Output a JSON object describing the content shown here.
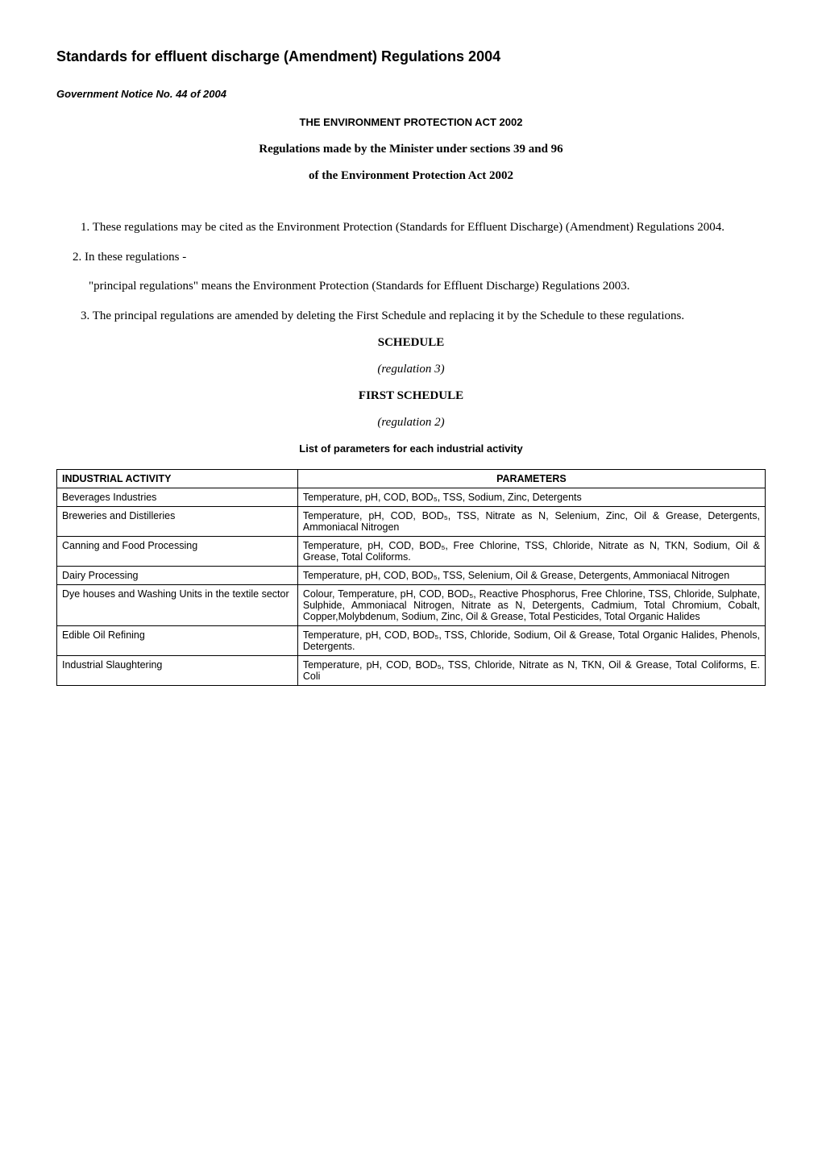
{
  "title": "Standards for effluent discharge (Amendment) Regulations 2004",
  "notice": "Government Notice No. 44 of 2004",
  "act_title": "THE ENVIRONMENT PROTECTION ACT 2002",
  "reg_line1": "Regulations made by the Minister under sections 39 and 96",
  "reg_line2": "of the Environment Protection Act 2002",
  "para1": "1. These regulations may be cited as the Environment Protection (Standards for Effluent Discharge) (Amendment) Regulations 2004.",
  "para2": "2.   In these regulations -",
  "para2b": "\"principal regulations\" means the Environment Protection (Standards for Effluent Discharge) Regulations 2003.",
  "para3": "3. The principal regulations are amended by deleting the First Schedule and replacing it by the Schedule to these regulations.",
  "schedule_heading": "SCHEDULE",
  "schedule_reg": "(regulation 3)",
  "first_schedule_heading": "FIRST SCHEDULE",
  "first_schedule_reg": "(regulation 2)",
  "list_heading": "List of parameters for each industrial activity",
  "table": {
    "header_activity": "INDUSTRIAL ACTIVITY",
    "header_params": "PARAMETERS",
    "rows": [
      {
        "activity": "Beverages Industries",
        "params": "Temperature, pH, COD, BOD₅, TSS, Sodium, Zinc, Detergents"
      },
      {
        "activity": "Breweries and Distilleries",
        "params": "Temperature, pH, COD, BOD₅, TSS, Nitrate as N, Selenium, Zinc, Oil & Grease, Detergents, Ammoniacal Nitrogen"
      },
      {
        "activity": "Canning and  Food Processing",
        "params": "Temperature, pH, COD, BOD₅, Free Chlorine, TSS, Chloride, Nitrate as N, TKN, Sodium, Oil & Grease, Total Coliforms."
      },
      {
        "activity": "Dairy Processing",
        "params": "Temperature, pH, COD, BOD₅, TSS, Selenium, Oil & Grease, Detergents, Ammoniacal Nitrogen"
      },
      {
        "activity": "Dye houses and  Washing Units in the textile sector",
        "params": "Colour, Temperature, pH, COD, BOD₅, Reactive Phosphorus, Free Chlorine, TSS, Chloride, Sulphate, Sulphide, Ammoniacal Nitrogen, Nitrate as N, Detergents, Cadmium, Total Chromium, Cobalt, Copper,Molybdenum, Sodium, Zinc, Oil & Grease, Total Pesticides, Total Organic Halides"
      },
      {
        "activity": "Edible Oil Refining",
        "params": "Temperature, pH, COD, BOD₅, TSS, Chloride, Sodium, Oil & Grease, Total Organic Halides, Phenols, Detergents."
      },
      {
        "activity": "Industrial Slaughtering",
        "params": "Temperature, pH, COD, BOD₅, TSS, Chloride, Nitrate as N, TKN, Oil & Grease, Total Coliforms, E. Coli"
      }
    ]
  }
}
